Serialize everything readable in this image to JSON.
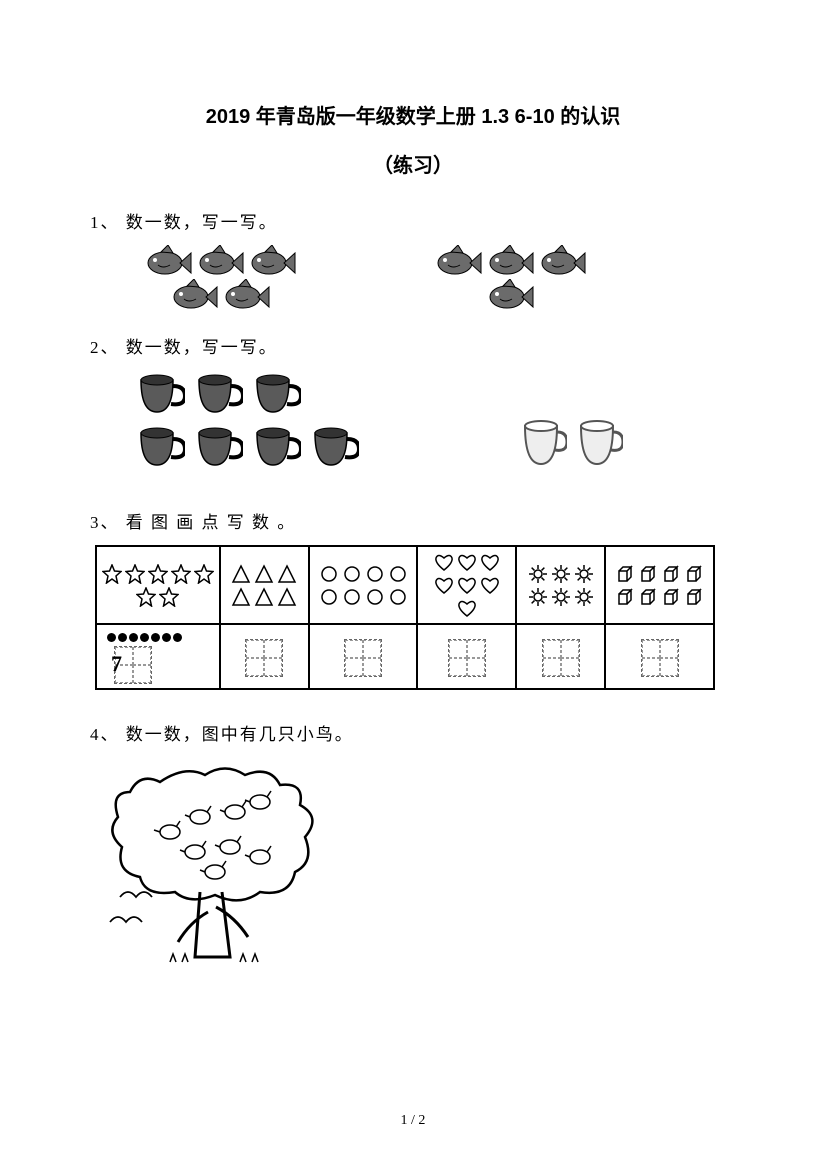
{
  "title": "2019 年青岛版一年级数学上册 1.3  6-10 的认识",
  "subtitle": "（练习）",
  "q1": {
    "label": "1、 数一数，写一写。",
    "left_fish": 5,
    "right_fish": 4
  },
  "q2": {
    "label": "2、 数一数，写一写。",
    "left_cups_row1": 3,
    "left_cups_row2": 4,
    "right_cups": 2
  },
  "q3": {
    "label": "3、 看 图 画 点 写 数 。",
    "cells": [
      {
        "shape": "star",
        "count": 7
      },
      {
        "shape": "triangle",
        "count": 6
      },
      {
        "shape": "circle",
        "count": 8
      },
      {
        "shape": "heart",
        "count": 7
      },
      {
        "shape": "sun",
        "count": 6
      },
      {
        "shape": "cube",
        "count": 8
      }
    ],
    "example": {
      "dots": 7,
      "number": "7"
    }
  },
  "q4": {
    "label": "4、 数一数，图中有几只小鸟。"
  },
  "page": "1  /  2",
  "colors": {
    "ink": "#000000",
    "bg": "#ffffff",
    "fish_body": "#6b6b6b",
    "cup_body": "#5a5a5a",
    "cup_light": "#dddddd"
  }
}
